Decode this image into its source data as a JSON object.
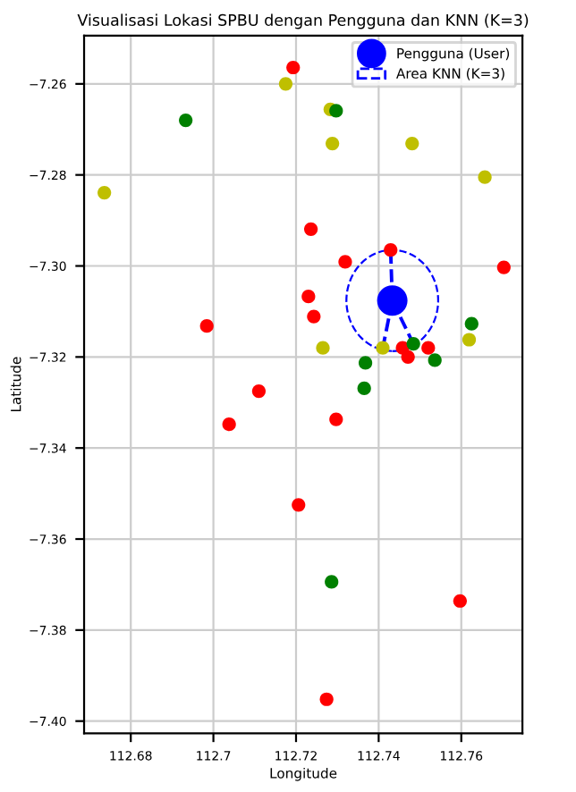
{
  "chart_data": {
    "type": "scatter",
    "title": "Visualisasi Lokasi SPBU dengan Pengguna dan KNN (K=3)",
    "xlabel": "Longitude",
    "ylabel": "Latitude",
    "xlim": [
      112.6687,
      112.7748
    ],
    "ylim": [
      -7.4027,
      -7.2494
    ],
    "xticks": [
      112.68,
      112.7,
      112.72,
      112.74,
      112.76
    ],
    "yticks": [
      {
        "value": -7.4,
        "label": "−7.40"
      },
      {
        "value": -7.38,
        "label": "−7.38"
      },
      {
        "value": -7.36,
        "label": "−7.36"
      },
      {
        "value": -7.34,
        "label": "−7.34"
      },
      {
        "value": -7.32,
        "label": "−7.32"
      },
      {
        "value": -7.3,
        "label": "−7.30"
      },
      {
        "value": -7.28,
        "label": "−7.28"
      },
      {
        "value": -7.26,
        "label": "−7.26"
      }
    ],
    "grid": true,
    "legend": "top right",
    "annotations": [
      "Area KNN (K=3)"
    ],
    "series": [
      {
        "marker": "circle",
        "color": "#ff0000",
        "x": [
          112.7193,
          112.7236,
          112.723,
          112.7243,
          112.6984,
          112.711,
          112.7429,
          112.7319,
          112.7703,
          112.7458,
          112.752,
          112.7471,
          112.7038,
          112.7206,
          112.7274,
          112.7297,
          112.7597
        ],
        "values": [
          -7.2564,
          -7.2919,
          -7.3067,
          -7.3111,
          -7.3132,
          -7.3275,
          -7.2965,
          -7.2991,
          -7.3003,
          -7.318,
          -7.318,
          -7.32,
          -7.3348,
          -7.3525,
          -7.3952,
          -7.3337,
          -7.3736
        ]
      },
      {
        "marker": "circle",
        "color": "#bfbf00",
        "x": [
          112.7175,
          112.6736,
          112.7265,
          112.7283,
          112.7288,
          112.7481,
          112.7657,
          112.7619,
          112.741
        ],
        "values": [
          -7.26,
          -7.2839,
          -7.318,
          -7.2656,
          -7.2731,
          -7.2731,
          -7.2805,
          -7.3162,
          -7.318
        ]
      },
      {
        "marker": "circle",
        "color": "#008000",
        "x": [
          112.6933,
          112.7297,
          112.7625,
          112.7484,
          112.7536,
          112.7368,
          112.7365,
          112.7286
        ],
        "values": [
          -7.268,
          -7.2659,
          -7.3127,
          -7.3171,
          -7.3207,
          -7.3213,
          -7.3269,
          -7.3694
        ]
      },
      {
        "type": "line",
        "color": "#0000ff",
        "line_style": "dashed",
        "x": [
          112.7433,
          112.7429
        ],
        "values": [
          -7.3076,
          -7.2965
        ]
      },
      {
        "type": "line",
        "color": "#0000ff",
        "line_style": "dashed",
        "x": [
          112.7433,
          112.741
        ],
        "values": [
          -7.3076,
          -7.318
        ]
      },
      {
        "type": "line",
        "color": "#0000ff",
        "line_style": "dashed",
        "x": [
          112.7433,
          112.7484
        ],
        "values": [
          -7.3076,
          -7.3171
        ]
      },
      {
        "marker": "circle",
        "name": "Pengguna (User)",
        "color": "#0000ff",
        "x": [
          112.7433
        ],
        "values": [
          -7.3076
        ]
      }
    ]
  }
}
